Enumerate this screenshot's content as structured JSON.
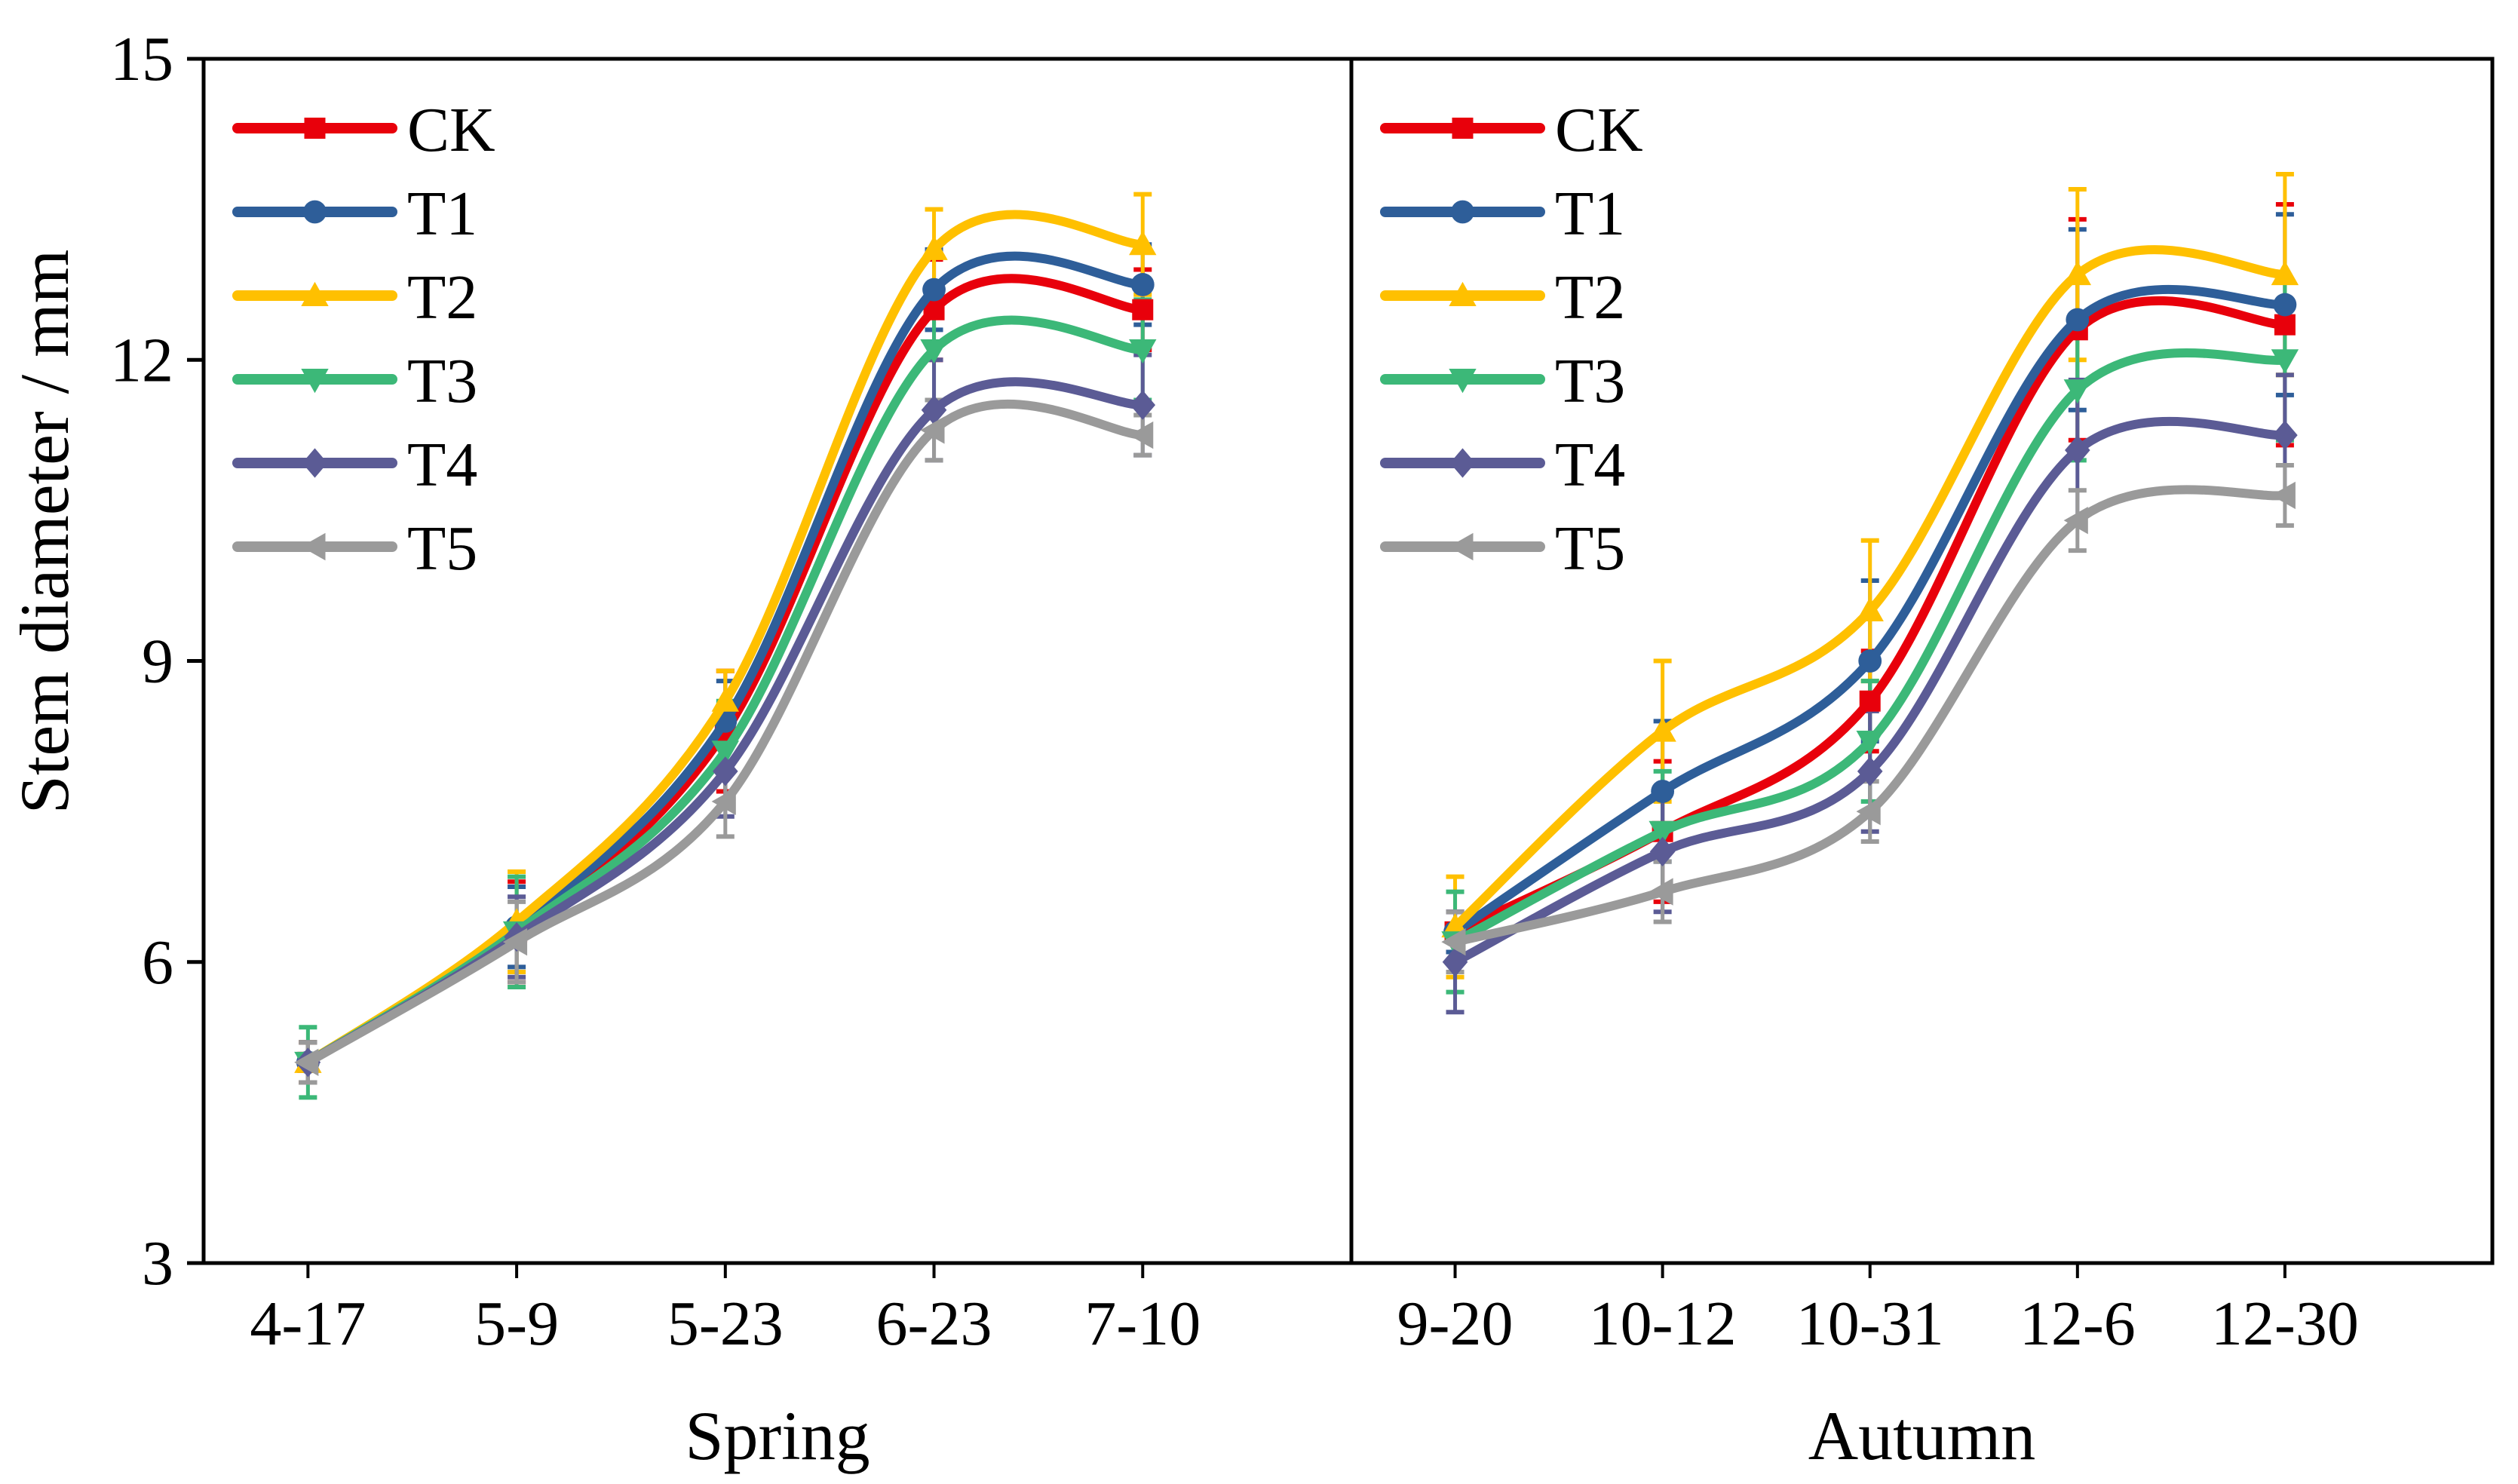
{
  "chart_data": {
    "type": "line",
    "ylabel": "Stem diameter / mm",
    "ylim": [
      3,
      15
    ],
    "yticks": [
      3,
      6,
      9,
      12,
      15
    ],
    "grid": false,
    "legend_position": "top-left",
    "panels": [
      {
        "xlabel": "Spring",
        "categories": [
          "4-17",
          "5-9",
          "5-23",
          "6-23",
          "7-10"
        ],
        "series": [
          {
            "name": "CK",
            "color": "#E8000B",
            "marker": "square",
            "values": [
              5.0,
              6.3,
              8.3,
              12.5,
              12.5
            ],
            "errors": [
              0.2,
              0.5,
              0.6,
              0.5,
              0.4
            ]
          },
          {
            "name": "T1",
            "color": "#2E5E99",
            "marker": "circle",
            "values": [
              5.0,
              6.35,
              8.4,
              12.7,
              12.75
            ],
            "errors": [
              0.2,
              0.4,
              0.4,
              0.4,
              0.4
            ]
          },
          {
            "name": "T2",
            "color": "#FFC000",
            "marker": "triangle-up",
            "values": [
              5.0,
              6.4,
              8.6,
              13.1,
              13.15
            ],
            "errors": [
              0.2,
              0.5,
              0.3,
              0.4,
              0.5
            ]
          },
          {
            "name": "T3",
            "color": "#3CB878",
            "marker": "triangle-down",
            "values": [
              5.0,
              6.3,
              8.1,
              12.1,
              12.1
            ],
            "errors": [
              0.35,
              0.55,
              0.5,
              0.5,
              0.5
            ]
          },
          {
            "name": "T4",
            "color": "#5B5B95",
            "marker": "diamond",
            "values": [
              5.0,
              6.25,
              7.9,
              11.5,
              11.55
            ],
            "errors": [
              0.2,
              0.4,
              0.45,
              0.5,
              0.5
            ]
          },
          {
            "name": "T5",
            "color": "#9A9A9A",
            "marker": "triangle-left",
            "values": [
              5.0,
              6.2,
              7.6,
              11.3,
              11.25
            ],
            "errors": [
              0.2,
              0.4,
              0.35,
              0.3,
              0.2
            ]
          }
        ]
      },
      {
        "xlabel": "Autumn",
        "categories": [
          "9-20",
          "10-12",
          "10-31",
          "12-6",
          "12-30"
        ],
        "series": [
          {
            "name": "CK",
            "color": "#E8000B",
            "marker": "square",
            "values": [
              6.3,
              7.3,
              8.6,
              12.3,
              12.35
            ],
            "errors": [
              0.2,
              0.7,
              0.5,
              1.1,
              1.2
            ]
          },
          {
            "name": "T1",
            "color": "#2E5E99",
            "marker": "circle",
            "values": [
              6.3,
              7.7,
              9.0,
              12.4,
              12.55
            ],
            "errors": [
              0.2,
              0.7,
              0.8,
              0.9,
              0.9
            ]
          },
          {
            "name": "T2",
            "color": "#FFC000",
            "marker": "triangle-up",
            "values": [
              6.35,
              8.3,
              9.5,
              12.85,
              12.85
            ],
            "errors": [
              0.5,
              0.7,
              0.7,
              0.85,
              1.0
            ]
          },
          {
            "name": "T3",
            "color": "#3CB878",
            "marker": "triangle-down",
            "values": [
              6.2,
              7.3,
              8.2,
              11.7,
              12.0
            ],
            "errors": [
              0.5,
              0.6,
              0.6,
              0.7,
              0.8
            ]
          },
          {
            "name": "T4",
            "color": "#5B5B95",
            "marker": "diamond",
            "values": [
              6.0,
              7.1,
              7.9,
              11.1,
              11.25
            ],
            "errors": [
              0.5,
              0.6,
              0.6,
              0.7,
              0.6
            ]
          },
          {
            "name": "T5",
            "color": "#9A9A9A",
            "marker": "triangle-left",
            "values": [
              6.2,
              6.7,
              7.5,
              10.4,
              10.65
            ],
            "errors": [
              0.3,
              0.3,
              0.3,
              0.3,
              0.3
            ]
          }
        ]
      }
    ]
  }
}
